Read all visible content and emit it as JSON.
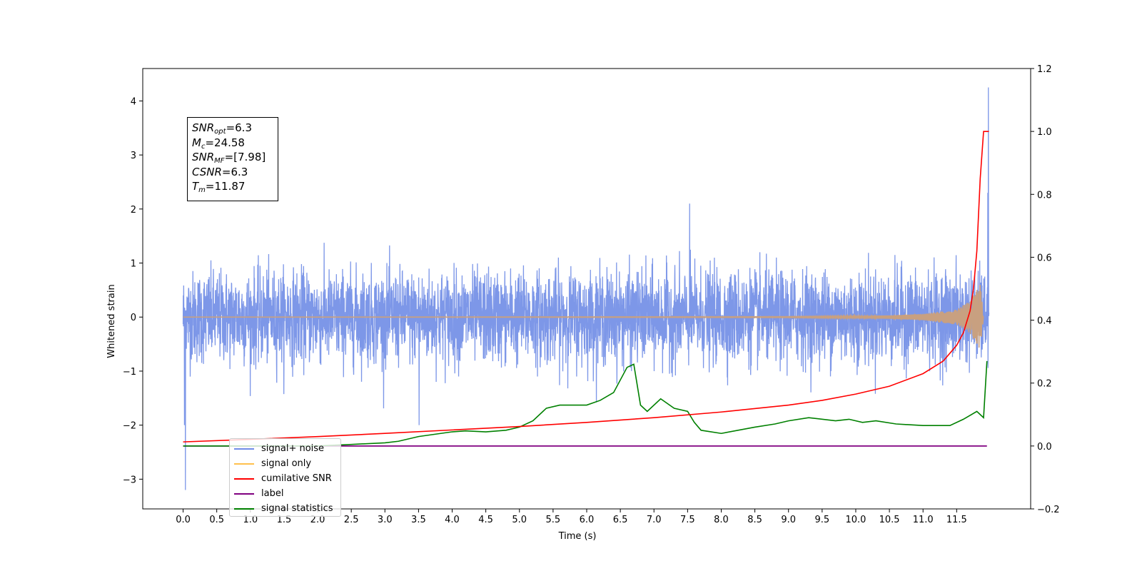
{
  "chart_data": {
    "type": "line",
    "title": "",
    "xlabel": "Time (s)",
    "ylabel": "Whitened strain",
    "xlim": [
      -0.6,
      12.6
    ],
    "ylim": [
      -3.55,
      4.6
    ],
    "y2lim": [
      -0.2,
      1.2
    ],
    "x_ticks": [
      "0.0",
      "0.5",
      "1.0",
      "1.5",
      "2.0",
      "2.5",
      "3.0",
      "3.5",
      "4.0",
      "4.5",
      "5.0",
      "5.5",
      "6.0",
      "6.5",
      "7.0",
      "7.5",
      "8.0",
      "8.5",
      "9.0",
      "9.5",
      "10.0",
      "10.5",
      "11.0",
      "11.5"
    ],
    "y_ticks": [
      "−3",
      "−2",
      "−1",
      "0",
      "1",
      "2",
      "3",
      "4"
    ],
    "y2_ticks": [
      "−0.2",
      "0.0",
      "0.2",
      "0.4",
      "0.6",
      "0.8",
      "1.0",
      "1.2"
    ],
    "grid": false,
    "legend_position": "lower-left",
    "series": [
      {
        "name": "signal+ noise",
        "axis": "left",
        "color": "#6f8ce6",
        "description_values": {
          "x_range": [
            0.0,
            11.98
          ],
          "typical_amplitude": 1.0,
          "min": -3.2,
          "max": 4.25
        }
      },
      {
        "name": "signal only",
        "axis": "left",
        "color": "#ffa500",
        "envelope": {
          "x": [
            0.0,
            9.0,
            10.5,
            11.0,
            11.5,
            11.7,
            11.85,
            11.9
          ],
          "amp": [
            0.0,
            0.01,
            0.03,
            0.06,
            0.14,
            0.3,
            0.6,
            0.0
          ]
        }
      },
      {
        "name": "cumilative SNR",
        "axis": "right",
        "color": "#ff0000",
        "x": [
          0.0,
          1.0,
          2.0,
          3.0,
          4.0,
          5.0,
          6.0,
          7.0,
          8.0,
          9.0,
          9.5,
          10.0,
          10.5,
          11.0,
          11.3,
          11.5,
          11.6,
          11.7,
          11.75,
          11.8,
          11.85,
          11.9,
          11.98
        ],
        "y": [
          0.013,
          0.021,
          0.03,
          0.04,
          0.051,
          0.062,
          0.075,
          0.09,
          0.108,
          0.13,
          0.145,
          0.165,
          0.19,
          0.23,
          0.27,
          0.32,
          0.36,
          0.43,
          0.5,
          0.62,
          0.85,
          1.0,
          1.0
        ]
      },
      {
        "name": "label",
        "axis": "right",
        "color": "#800080",
        "x": [
          0.0,
          11.95
        ],
        "y": [
          0.0,
          0.0
        ]
      },
      {
        "name": "signal statistics",
        "axis": "right",
        "color": "#008000",
        "x": [
          0.0,
          1.0,
          2.0,
          2.5,
          3.0,
          3.2,
          3.5,
          4.0,
          4.2,
          4.5,
          4.8,
          5.0,
          5.2,
          5.4,
          5.6,
          5.8,
          6.0,
          6.2,
          6.4,
          6.6,
          6.7,
          6.8,
          6.9,
          7.1,
          7.3,
          7.5,
          7.6,
          7.7,
          8.0,
          8.5,
          8.8,
          9.0,
          9.3,
          9.7,
          9.9,
          10.1,
          10.3,
          10.6,
          11.0,
          11.4,
          11.6,
          11.8,
          11.9,
          11.95
        ],
        "y": [
          0.0,
          0.0,
          0.0,
          0.005,
          0.01,
          0.015,
          0.03,
          0.045,
          0.048,
          0.045,
          0.05,
          0.06,
          0.08,
          0.12,
          0.13,
          0.13,
          0.13,
          0.145,
          0.17,
          0.25,
          0.26,
          0.13,
          0.11,
          0.15,
          0.12,
          0.11,
          0.075,
          0.05,
          0.04,
          0.06,
          0.07,
          0.08,
          0.09,
          0.08,
          0.085,
          0.075,
          0.08,
          0.07,
          0.065,
          0.065,
          0.085,
          0.11,
          0.09,
          0.27
        ]
      }
    ]
  },
  "annotation": {
    "rows": [
      {
        "sym": "SNR",
        "sub": "opt",
        "rest": "=6.3"
      },
      {
        "sym": "M",
        "sub": "c",
        "rest": "=24.58"
      },
      {
        "sym": "SNR",
        "sub": "MF",
        "rest": "=[7.98]"
      },
      {
        "sym": "CSNR",
        "sub": "",
        "rest": "=6.3"
      },
      {
        "sym": "T",
        "sub": "m",
        "rest": "=11.87"
      }
    ]
  },
  "legend": {
    "items": [
      {
        "label": "signal+ noise",
        "color": "#6f8ce6"
      },
      {
        "label": "signal only",
        "color": "#ffc04d"
      },
      {
        "label": "cumilative SNR",
        "color": "#ff0000"
      },
      {
        "label": "label",
        "color": "#800080"
      },
      {
        "label": "signal statistics",
        "color": "#008000"
      }
    ]
  }
}
